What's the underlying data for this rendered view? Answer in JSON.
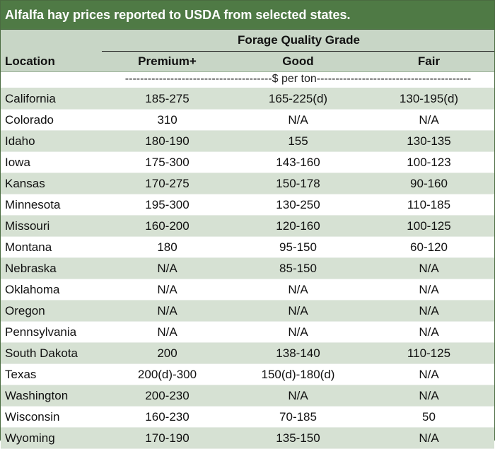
{
  "title": "Alfalfa hay prices reported to USDA from selected states.",
  "header": {
    "group": "Forage Quality Grade",
    "location": "Location",
    "premium": "Premium+",
    "good": "Good",
    "fair": "Fair"
  },
  "units": "---------------------------------------$ per ton-----------------------------------------",
  "rows": [
    {
      "location": "California",
      "premium": "185-275",
      "good": "165-225(d)",
      "fair": "130-195(d)"
    },
    {
      "location": "Colorado",
      "premium": "310",
      "good": "N/A",
      "fair": "N/A"
    },
    {
      "location": "Idaho",
      "premium": "180-190",
      "good": "155",
      "fair": "130-135"
    },
    {
      "location": "Iowa",
      "premium": "175-300",
      "good": "143-160",
      "fair": "100-123"
    },
    {
      "location": "Kansas",
      "premium": "170-275",
      "good": "150-178",
      "fair": "90-160"
    },
    {
      "location": "Minnesota",
      "premium": "195-300",
      "good": "130-250",
      "fair": "110-185"
    },
    {
      "location": "Missouri",
      "premium": "160-200",
      "good": "120-160",
      "fair": "100-125"
    },
    {
      "location": "Montana",
      "premium": "180",
      "good": "95-150",
      "fair": "60-120"
    },
    {
      "location": "Nebraska",
      "premium": "N/A",
      "good": "85-150",
      "fair": "N/A"
    },
    {
      "location": "Oklahoma",
      "premium": "N/A",
      "good": "N/A",
      "fair": "N/A"
    },
    {
      "location": "Oregon",
      "premium": "N/A",
      "good": "N/A",
      "fair": "N/A"
    },
    {
      "location": "Pennsylvania",
      "premium": "N/A",
      "good": "N/A",
      "fair": "N/A"
    },
    {
      "location": "South Dakota",
      "premium": "200",
      "good": "138-140",
      "fair": "110-125"
    },
    {
      "location": "Texas",
      "premium": "200(d)-300",
      "good": "150(d)-180(d)",
      "fair": "N/A"
    },
    {
      "location": "Washington",
      "premium": "200-230",
      "good": "N/A",
      "fair": "N/A"
    },
    {
      "location": "Wisconsin",
      "premium": "160-230",
      "good": "70-185",
      "fair": "50"
    },
    {
      "location": "Wyoming",
      "premium": "170-190",
      "good": "135-150",
      "fair": "N/A"
    }
  ]
}
